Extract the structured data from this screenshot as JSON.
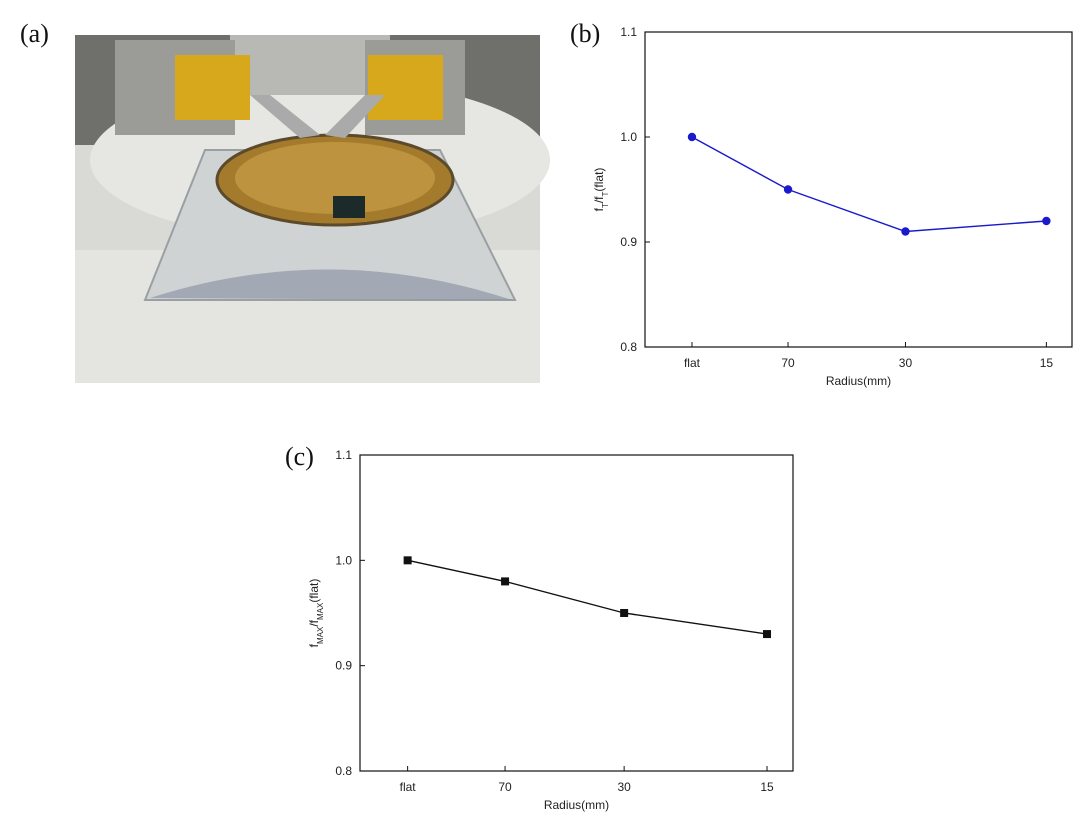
{
  "photo": {
    "label": "(a)"
  },
  "chart_data": [
    {
      "label": "(b)",
      "type": "line",
      "categories": [
        "flat",
        "70",
        "30",
        "15"
      ],
      "series": [
        {
          "color": "#1a1acc",
          "marker": "circle",
          "values": [
            1,
            0.95,
            0.91,
            0.92
          ]
        }
      ],
      "x_label": "Radius(mm)",
      "y_label_parts": [
        "f",
        "T",
        "/f",
        "T",
        "(flat)"
      ],
      "ylim": [
        0.8,
        1.1
      ],
      "yticks": [
        0.8,
        0.9,
        {
          "value": 1,
          "label": "1.0"
        },
        1.1
      ]
    },
    {
      "label": "(c)",
      "type": "line",
      "categories": [
        "flat",
        "70",
        "30",
        "15"
      ],
      "series": [
        {
          "color": "#111111",
          "marker": "square",
          "values": [
            1,
            0.98,
            0.95,
            0.93
          ]
        }
      ],
      "x_label": "Radius(mm)",
      "y_label_parts": [
        "f",
        "MAX",
        "/f",
        "MAX",
        "(flat)"
      ],
      "ylim": [
        0.8,
        1.1
      ],
      "yticks": [
        0.8,
        0.9,
        {
          "value": 1,
          "label": "1.0"
        },
        1.1
      ]
    }
  ]
}
